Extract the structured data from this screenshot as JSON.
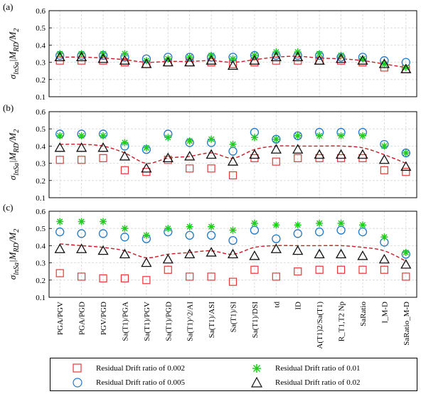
{
  "colors": {
    "rd002": "#e8373a",
    "rd005": "#1f78c8",
    "rd01": "#1ecb1e",
    "rd02": "#111111",
    "trend": "#c81e28"
  },
  "legend": {
    "rd002": "Residual Drift ratio of 0.002",
    "rd005": "Residual Drift ratio of 0.005",
    "rd01": "Residual Drift ratio of 0.01",
    "rd02": "Residual Drift ratio of 0.02"
  },
  "chart_data": {
    "type": "scatter",
    "ylabel": "σlnSa|M_RD/M_2",
    "ylim": [
      0.1,
      0.6
    ],
    "yticks": [
      "0.1",
      "0.2",
      "0.3",
      "0.4",
      "0.5",
      "0.6"
    ],
    "grid": true,
    "legend_placement": "bottom",
    "categories": [
      "PGA/PGV",
      "PGA/PGD",
      "PGV/PGD",
      "Sa(T1)/PGA",
      "Sa(T1)/PGV",
      "Sa(T1)/PGD",
      "Sa(T1)^2/AI",
      "Sa(T1)/ASI",
      "Sa(T1)/SI",
      "Sa(T1)/DSI",
      "td",
      "ID",
      "A(T1)2/Sa(T1)",
      "R_T1,T2 Np",
      "SaRatio",
      "I_M-D",
      "SaRatio_M-D"
    ],
    "panels": [
      {
        "label": "(a)",
        "series": [
          {
            "name": "Residual Drift ratio of 0.002",
            "marker": "square",
            "values": [
              0.31,
              0.31,
              0.31,
              0.3,
              0.29,
              0.3,
              0.3,
              0.3,
              0.29,
              0.3,
              0.31,
              0.31,
              0.31,
              0.31,
              0.3,
              0.27,
              0.26
            ]
          },
          {
            "name": "Residual Drift ratio of 0.005",
            "marker": "circle",
            "values": [
              0.34,
              0.34,
              0.34,
              0.33,
              0.32,
              0.33,
              0.33,
              0.33,
              0.33,
              0.34,
              0.34,
              0.34,
              0.34,
              0.33,
              0.33,
              0.31,
              0.3
            ]
          },
          {
            "name": "Residual Drift ratio of 0.01",
            "marker": "star",
            "values": [
              0.35,
              0.35,
              0.35,
              0.35,
              0.31,
              0.32,
              0.33,
              0.34,
              0.32,
              0.34,
              0.36,
              0.36,
              0.35,
              0.34,
              0.32,
              0.29,
              0.27
            ]
          },
          {
            "name": "Residual Drift ratio of 0.02",
            "marker": "triangle",
            "values": [
              0.33,
              0.33,
              0.32,
              0.31,
              0.29,
              0.3,
              0.3,
              0.31,
              0.28,
              0.31,
              0.33,
              0.33,
              0.31,
              0.32,
              0.31,
              0.29,
              0.26
            ]
          }
        ],
        "trend": [
          0.33,
          0.33,
          0.325,
          0.315,
          0.3,
          0.305,
          0.305,
          0.31,
          0.3,
          0.315,
          0.33,
          0.335,
          0.325,
          0.32,
          0.31,
          0.29,
          0.27
        ]
      },
      {
        "label": "(b)",
        "series": [
          {
            "name": "Residual Drift ratio of 0.002",
            "marker": "square",
            "values": [
              0.32,
              0.32,
              0.33,
              0.26,
              0.25,
              0.32,
              0.27,
              0.27,
              0.23,
              0.33,
              0.31,
              0.33,
              0.33,
              0.33,
              0.33,
              0.26,
              0.25
            ]
          },
          {
            "name": "Residual Drift ratio of 0.005",
            "marker": "circle",
            "values": [
              0.47,
              0.47,
              0.47,
              0.4,
              0.38,
              0.47,
              0.42,
              0.42,
              0.37,
              0.48,
              0.44,
              0.46,
              0.48,
              0.48,
              0.48,
              0.41,
              0.36
            ]
          },
          {
            "name": "Residual Drift ratio of 0.01",
            "marker": "star",
            "values": [
              0.46,
              0.46,
              0.46,
              0.42,
              0.39,
              0.45,
              0.43,
              0.44,
              0.41,
              0.45,
              0.44,
              0.46,
              0.46,
              0.46,
              0.46,
              0.4,
              0.36
            ]
          },
          {
            "name": "Residual Drift ratio of 0.02",
            "marker": "triangle",
            "values": [
              0.39,
              0.39,
              0.39,
              0.34,
              0.27,
              0.33,
              0.34,
              0.35,
              0.31,
              0.35,
              0.38,
              0.38,
              0.35,
              0.35,
              0.35,
              0.32,
              0.28
            ]
          }
        ],
        "trend": [
          0.41,
          0.41,
          0.4,
          0.36,
          0.3,
          0.33,
          0.34,
          0.36,
          0.33,
          0.38,
          0.4,
          0.4,
          0.4,
          0.4,
          0.39,
          0.35,
          0.3
        ]
      },
      {
        "label": "(c)",
        "series": [
          {
            "name": "Residual Drift ratio of 0.002",
            "marker": "square",
            "values": [
              0.24,
              0.22,
              0.21,
              0.21,
              0.2,
              0.26,
              0.22,
              0.22,
              0.19,
              0.26,
              0.22,
              0.25,
              0.26,
              0.26,
              0.26,
              0.26,
              0.22
            ]
          },
          {
            "name": "Residual Drift ratio of 0.005",
            "marker": "circle",
            "values": [
              0.48,
              0.47,
              0.47,
              0.45,
              0.44,
              0.48,
              0.46,
              0.46,
              0.43,
              0.49,
              0.44,
              0.47,
              0.48,
              0.49,
              0.48,
              0.42,
              0.35
            ]
          },
          {
            "name": "Residual Drift ratio of 0.01",
            "marker": "star",
            "values": [
              0.54,
              0.54,
              0.54,
              0.5,
              0.46,
              0.5,
              0.51,
              0.51,
              0.49,
              0.53,
              0.52,
              0.52,
              0.53,
              0.53,
              0.52,
              0.45,
              0.36
            ]
          },
          {
            "name": "Residual Drift ratio of 0.02",
            "marker": "triangle",
            "values": [
              0.38,
              0.38,
              0.37,
              0.35,
              0.3,
              0.32,
              0.35,
              0.36,
              0.35,
              0.34,
              0.38,
              0.37,
              0.35,
              0.35,
              0.34,
              0.32,
              0.29
            ]
          }
        ],
        "trend": [
          0.41,
          0.4,
          0.39,
          0.37,
          0.33,
          0.35,
          0.36,
          0.37,
          0.35,
          0.39,
          0.4,
          0.4,
          0.4,
          0.4,
          0.39,
          0.37,
          0.31
        ]
      }
    ]
  }
}
